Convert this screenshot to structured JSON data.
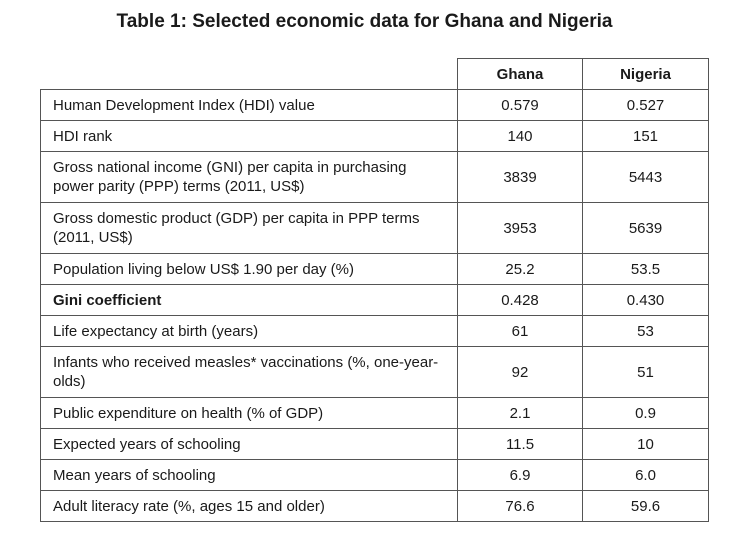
{
  "title": "Table 1: Selected economic data for Ghana and Nigeria",
  "columns": [
    "Ghana",
    "Nigeria"
  ],
  "rows": [
    {
      "label": "Human Development Index (HDI) value",
      "ghana": "0.579",
      "nigeria": "0.527",
      "bold": false
    },
    {
      "label": "HDI rank",
      "ghana": "140",
      "nigeria": "151",
      "bold": false
    },
    {
      "label": "Gross national income (GNI) per capita in purchasing power parity (PPP) terms (2011, US$)",
      "ghana": "3839",
      "nigeria": "5443",
      "bold": false
    },
    {
      "label": "Gross domestic product (GDP) per capita in PPP terms (2011, US$)",
      "ghana": "3953",
      "nigeria": "5639",
      "bold": false
    },
    {
      "label": "Population living below US$ 1.90 per day (%)",
      "ghana": "25.2",
      "nigeria": "53.5",
      "bold": false
    },
    {
      "label": "Gini coefficient",
      "ghana": "0.428",
      "nigeria": "0.430",
      "bold": true
    },
    {
      "label": "Life expectancy at birth (years)",
      "ghana": "61",
      "nigeria": "53",
      "bold": false
    },
    {
      "label": "Infants who received measles* vaccinations (%, one-year-olds)",
      "ghana": "92",
      "nigeria": "51",
      "bold": false
    },
    {
      "label": "Public expenditure on health (% of GDP)",
      "ghana": "2.1",
      "nigeria": "0.9",
      "bold": false
    },
    {
      "label": "Expected years of schooling",
      "ghana": "11.5",
      "nigeria": "10",
      "bold": false
    },
    {
      "label": "Mean years of schooling",
      "ghana": "6.9",
      "nigeria": "6.0",
      "bold": false
    },
    {
      "label": "Adult literacy rate (%, ages 15 and older)",
      "ghana": "76.6",
      "nigeria": "59.6",
      "bold": false
    }
  ]
}
